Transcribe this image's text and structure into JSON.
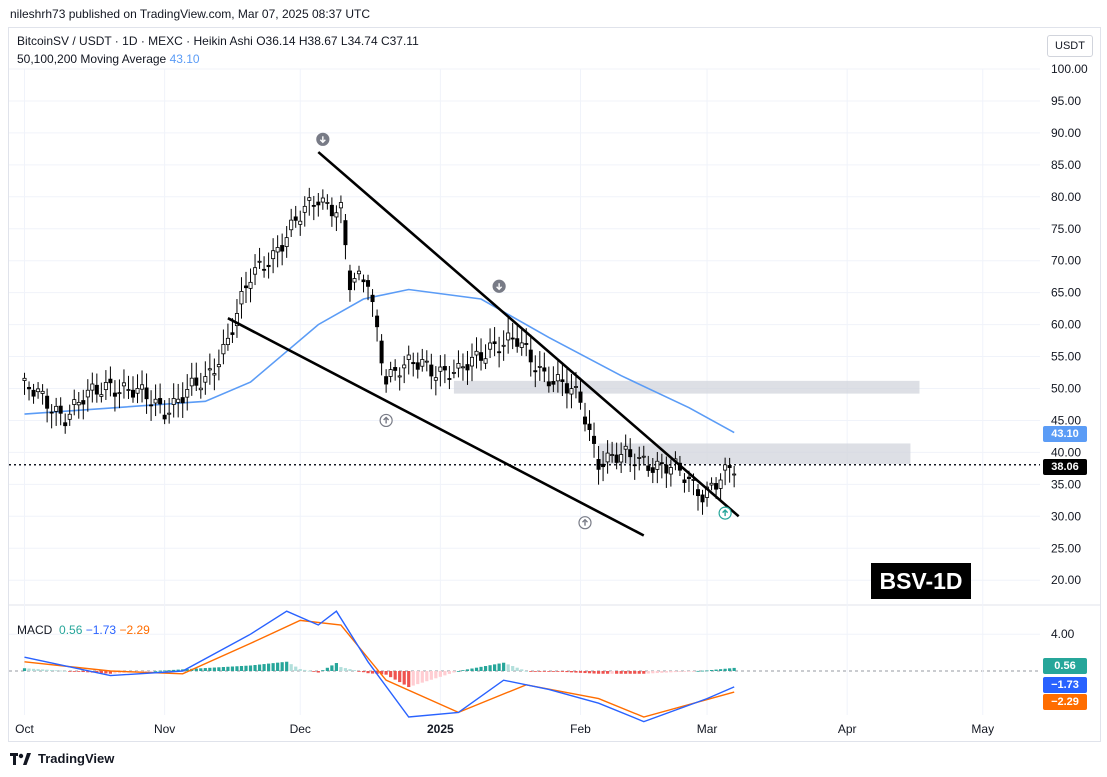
{
  "header": {
    "publisher": "nileshrh73 published on TradingView.com, Mar 07, 2025 08:37 UTC"
  },
  "legend": {
    "symbol_line": "BitcoinSV / USDT · 1D · MEXC · Heikin Ashi",
    "ohlc": "O36.14  H38.67  L34.74  C37.11",
    "ma_label": "50,100,200 Moving Average",
    "ma_value": "43.10"
  },
  "macd_legend": {
    "label": "MACD",
    "hist": "0.56",
    "macd": "−1.73",
    "signal": "−2.29"
  },
  "price_axis": {
    "currency": "USDT",
    "ticks": [
      "100.00",
      "95.00",
      "90.00",
      "85.00",
      "80.00",
      "75.00",
      "70.00",
      "65.00",
      "60.00",
      "55.00",
      "50.00",
      "45.00",
      "40.00",
      "35.00",
      "30.00",
      "25.00",
      "20.00"
    ],
    "macd_tick": "4.00"
  },
  "time_axis": {
    "labels": [
      "Oct",
      "Nov",
      "Dec",
      "2025",
      "Feb",
      "Mar",
      "Apr",
      "May"
    ]
  },
  "tags": {
    "ma": "43.10",
    "price": "38.06",
    "hist": "0.56",
    "macd": "−1.73",
    "signal": "−2.29"
  },
  "annotation": {
    "label": "BSV-1D"
  },
  "footer": {
    "brand": "TradingView"
  },
  "colors": {
    "up": "#26a69a",
    "down": "#ef5350",
    "ma": "#5b9cf6",
    "macd": "#2962ff",
    "signal": "#ff6d00",
    "zone": "#d1d4dc"
  },
  "chart_data": {
    "type": "candlestick",
    "symbol": "BitcoinSV / USDT",
    "timeframe": "1D",
    "last_price": 38.06,
    "moving_average_value": 43.1,
    "ylim": [
      16,
      103
    ],
    "x_range": [
      "2024-09-29",
      "2025-05-15"
    ],
    "candles_approx": [
      {
        "date": "2024-10-01",
        "close": 50
      },
      {
        "date": "2024-10-10",
        "close": 46
      },
      {
        "date": "2024-10-20",
        "close": 51
      },
      {
        "date": "2024-11-01",
        "close": 47
      },
      {
        "date": "2024-11-10",
        "close": 51
      },
      {
        "date": "2024-11-15",
        "close": 58
      },
      {
        "date": "2024-11-20",
        "close": 67
      },
      {
        "date": "2024-11-28",
        "close": 74
      },
      {
        "date": "2024-12-05",
        "close": 80
      },
      {
        "date": "2024-12-10",
        "close": 78
      },
      {
        "date": "2024-12-12",
        "close": 66
      },
      {
        "date": "2024-12-16",
        "close": 67
      },
      {
        "date": "2024-12-20",
        "close": 52
      },
      {
        "date": "2024-12-28",
        "close": 54
      },
      {
        "date": "2025-01-05",
        "close": 52
      },
      {
        "date": "2025-01-12",
        "close": 57
      },
      {
        "date": "2025-01-18",
        "close": 57
      },
      {
        "date": "2025-01-25",
        "close": 52
      },
      {
        "date": "2025-02-01",
        "close": 48
      },
      {
        "date": "2025-02-05",
        "close": 39
      },
      {
        "date": "2025-02-15",
        "close": 39
      },
      {
        "date": "2025-02-22",
        "close": 37
      },
      {
        "date": "2025-02-28",
        "close": 34
      },
      {
        "date": "2025-03-07",
        "close": 37.11
      }
    ],
    "moving_average": [
      {
        "date": "2024-10-01",
        "value": 46
      },
      {
        "date": "2024-11-10",
        "value": 48
      },
      {
        "date": "2024-11-20",
        "value": 51
      },
      {
        "date": "2024-12-05",
        "value": 60
      },
      {
        "date": "2024-12-15",
        "value": 64
      },
      {
        "date": "2024-12-25",
        "value": 65.5
      },
      {
        "date": "2025-01-10",
        "value": 64
      },
      {
        "date": "2025-01-25",
        "value": 58
      },
      {
        "date": "2025-02-10",
        "value": 52
      },
      {
        "date": "2025-02-25",
        "value": 47
      },
      {
        "date": "2025-03-07",
        "value": 43.1
      }
    ],
    "trendlines": [
      {
        "name": "upper",
        "from": {
          "date": "2024-12-05",
          "price": 87
        },
        "to": {
          "date": "2025-03-08",
          "price": 30
        }
      },
      {
        "name": "lower",
        "from": {
          "date": "2024-11-15",
          "price": 61
        },
        "to": {
          "date": "2025-02-15",
          "price": 27
        }
      }
    ],
    "zones": [
      {
        "from": "2025-01-04",
        "to": "2025-04-17",
        "low": 49.2,
        "high": 51.2
      },
      {
        "from": "2025-02-05",
        "to": "2025-04-15",
        "low": 38.2,
        "high": 41.4
      }
    ],
    "markers": [
      {
        "date": "2024-12-06",
        "price": 89,
        "direction": "down"
      },
      {
        "date": "2024-12-20",
        "price": 45,
        "direction": "up"
      },
      {
        "date": "2025-01-14",
        "price": 66,
        "direction": "down"
      },
      {
        "date": "2025-02-02",
        "price": 29,
        "direction": "up"
      },
      {
        "date": "2025-03-05",
        "price": 30.5,
        "direction": "up"
      }
    ],
    "macd": {
      "ylim": [
        -9,
        7
      ],
      "macd_line": [
        {
          "date": "2024-10-01",
          "value": 1.5
        },
        {
          "date": "2024-10-20",
          "value": -0.5
        },
        {
          "date": "2024-11-05",
          "value": 0
        },
        {
          "date": "2024-11-20",
          "value": 4
        },
        {
          "date": "2024-11-28",
          "value": 6.5
        },
        {
          "date": "2024-12-05",
          "value": 5
        },
        {
          "date": "2024-12-09",
          "value": 6.5
        },
        {
          "date": "2024-12-16",
          "value": 1
        },
        {
          "date": "2024-12-25",
          "value": -5
        },
        {
          "date": "2025-01-05",
          "value": -4.5
        },
        {
          "date": "2025-01-15",
          "value": -1
        },
        {
          "date": "2025-01-25",
          "value": -2
        },
        {
          "date": "2025-02-05",
          "value": -3.5
        },
        {
          "date": "2025-02-15",
          "value": -5.5
        },
        {
          "date": "2025-03-01",
          "value": -3
        },
        {
          "date": "2025-03-07",
          "value": -1.73
        }
      ],
      "signal_line": [
        {
          "date": "2024-10-01",
          "value": 1
        },
        {
          "date": "2024-10-20",
          "value": 0
        },
        {
          "date": "2024-11-05",
          "value": -0.3
        },
        {
          "date": "2024-11-20",
          "value": 3
        },
        {
          "date": "2024-12-01",
          "value": 5.5
        },
        {
          "date": "2024-12-10",
          "value": 5
        },
        {
          "date": "2024-12-20",
          "value": -1
        },
        {
          "date": "2025-01-05",
          "value": -4.5
        },
        {
          "date": "2025-01-20",
          "value": -1.5
        },
        {
          "date": "2025-02-05",
          "value": -3
        },
        {
          "date": "2025-02-15",
          "value": -5
        },
        {
          "date": "2025-03-07",
          "value": -2.29
        }
      ],
      "histogram_last": 0.56
    }
  }
}
